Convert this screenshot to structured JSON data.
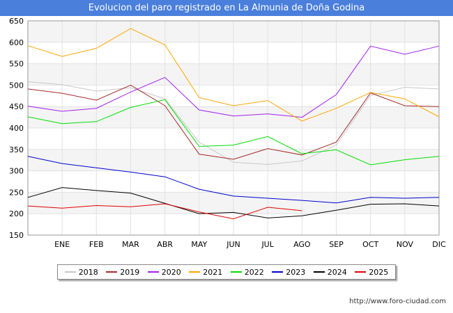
{
  "chart_data": {
    "type": "line",
    "title": "Evolucion del paro registrado en La Almunia de Doña Godina",
    "categories": [
      "",
      "ENE",
      "FEB",
      "MAR",
      "ABR",
      "MAY",
      "JUN",
      "JUL",
      "AGO",
      "SEP",
      "OCT",
      "NOV",
      "DIC"
    ],
    "ylim": [
      150,
      650
    ],
    "yticks": [
      150,
      200,
      250,
      300,
      350,
      400,
      450,
      500,
      550,
      600,
      650
    ],
    "grid": true,
    "legend_position": "bottom",
    "series": [
      {
        "name": "2018",
        "color": "#c8c8c8",
        "values": [
          508,
          501,
          486,
          494,
          468,
          367,
          320,
          315,
          323,
          360,
          476,
          495,
          491
        ]
      },
      {
        "name": "2019",
        "color": "#a52a2a",
        "values": [
          491,
          481,
          465,
          500,
          452,
          339,
          327,
          352,
          337,
          367,
          482,
          452,
          450
        ]
      },
      {
        "name": "2020",
        "color": "#a020f0",
        "values": [
          451,
          439,
          446,
          484,
          518,
          442,
          428,
          433,
          425,
          478,
          591,
          572,
          591
        ]
      },
      {
        "name": "2021",
        "color": "#ffa500",
        "values": [
          592,
          567,
          586,
          632,
          594,
          471,
          452,
          464,
          416,
          446,
          483,
          468,
          426
        ]
      },
      {
        "name": "2022",
        "color": "#00e000",
        "values": [
          426,
          410,
          415,
          448,
          466,
          357,
          360,
          380,
          340,
          349,
          314,
          326,
          334
        ]
      },
      {
        "name": "2023",
        "color": "#0000cc",
        "values": [
          334,
          317,
          307,
          297,
          286,
          257,
          241,
          236,
          231,
          225,
          238,
          236,
          238
        ]
      },
      {
        "name": "2024",
        "color": "#000000",
        "values": [
          238,
          261,
          254,
          248,
          224,
          200,
          203,
          190,
          195,
          208,
          222,
          223,
          218
        ]
      },
      {
        "name": "2025",
        "color": "#e00000",
        "values": [
          218,
          213,
          219,
          216,
          223,
          204,
          188,
          215,
          207,
          null,
          null,
          null,
          null
        ]
      }
    ]
  },
  "credit": "http://www.foro-ciudad.com"
}
